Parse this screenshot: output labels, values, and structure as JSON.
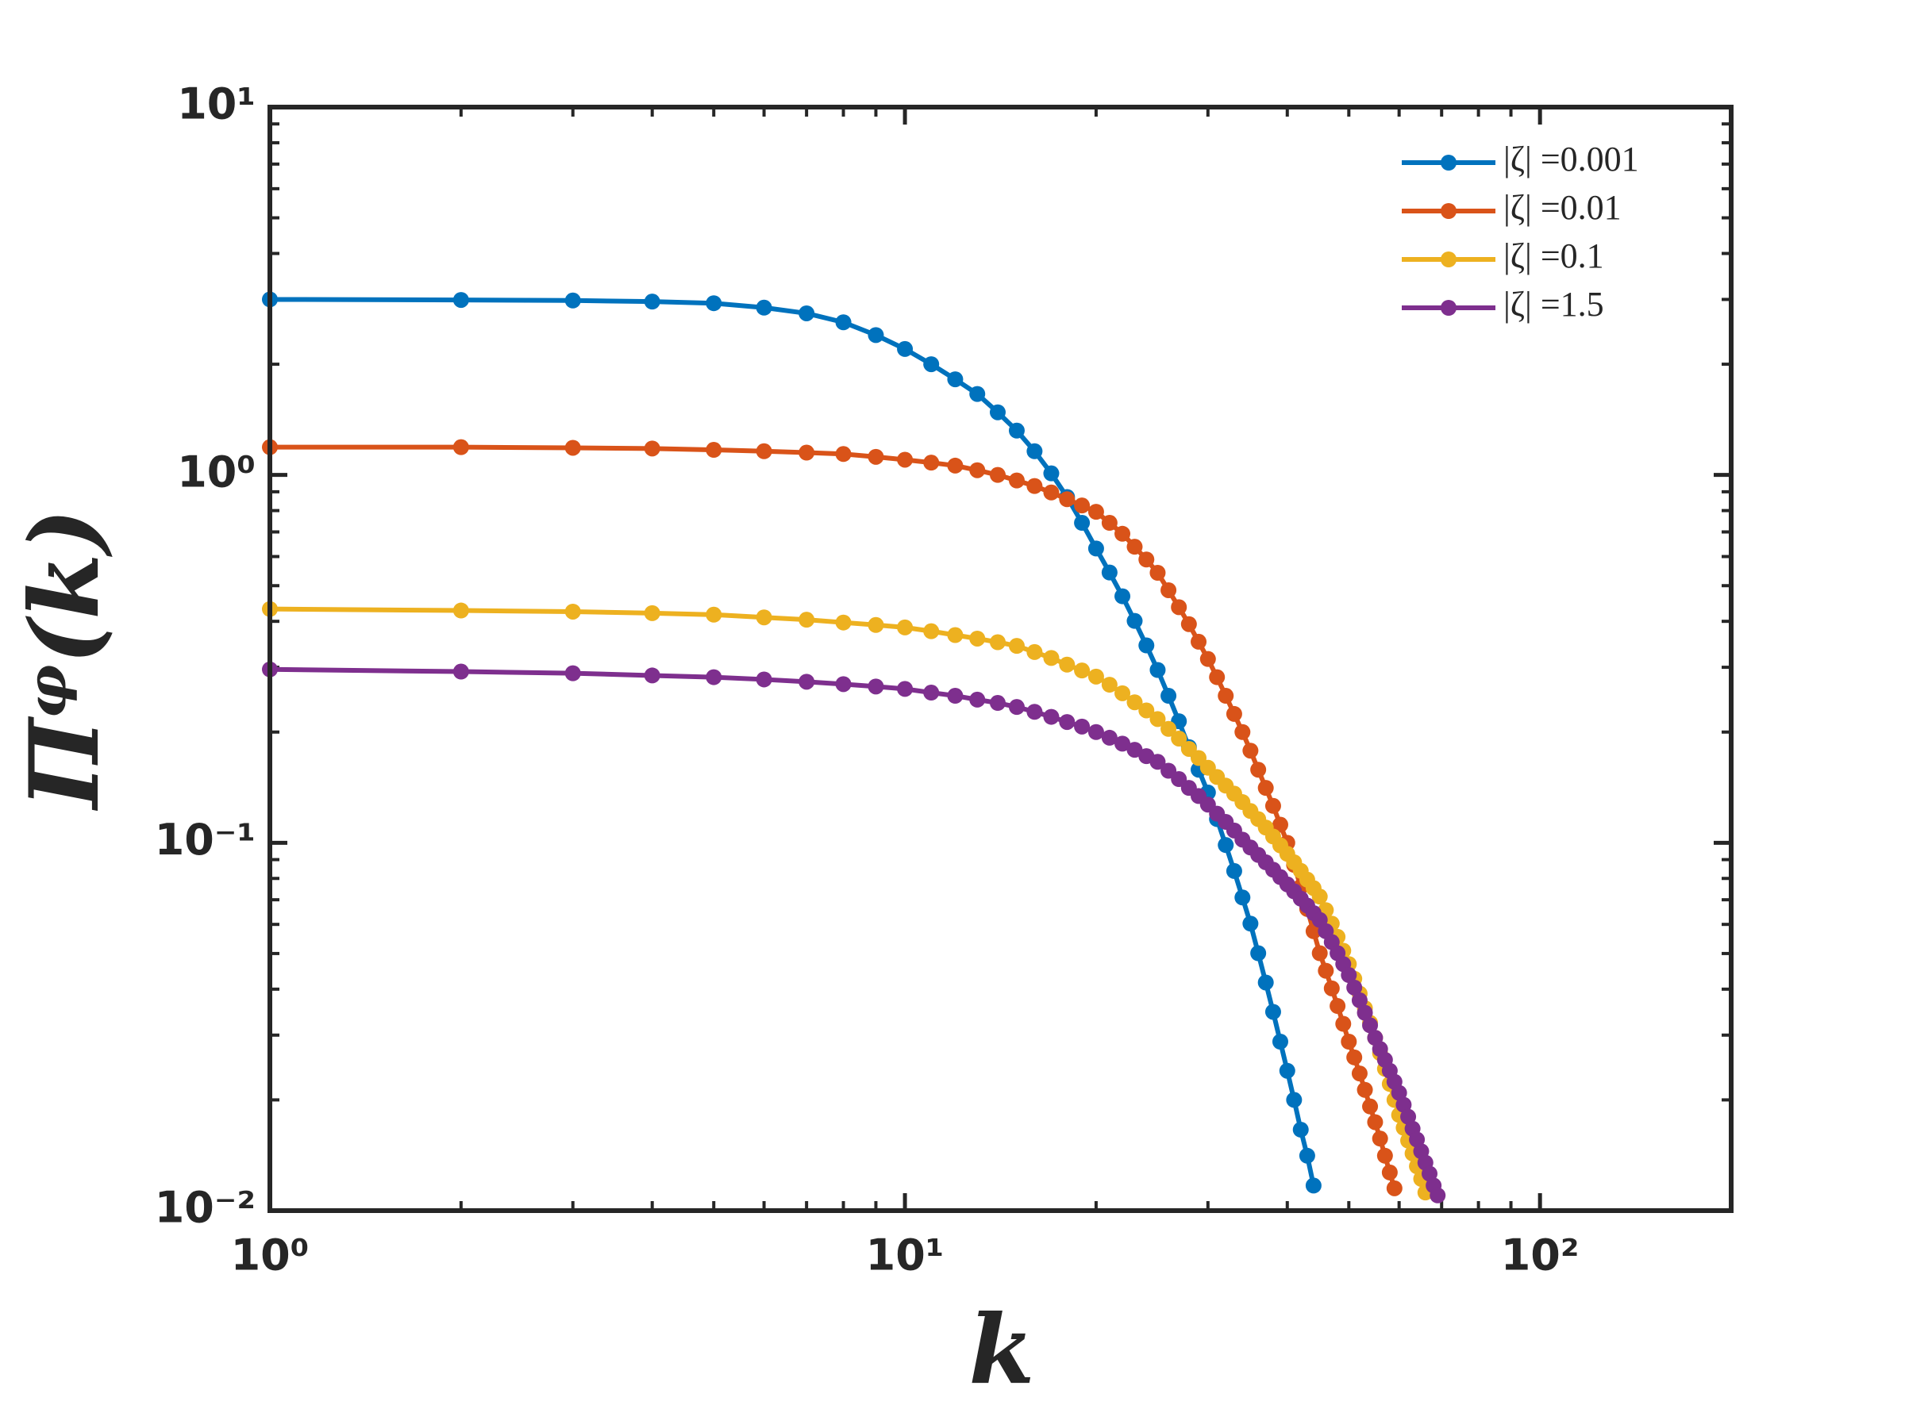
{
  "chart_data": {
    "type": "line",
    "xlabel": "k",
    "ylabel": "Πᵠ(k)",
    "xscale": "log",
    "yscale": "log",
    "xlim": [
      1,
      200
    ],
    "ylim": [
      0.01,
      10
    ],
    "xticks": [
      {
        "value": 1,
        "label": "10⁰"
      },
      {
        "value": 10,
        "label": "10¹"
      },
      {
        "value": 100,
        "label": "10²"
      }
    ],
    "yticks": [
      {
        "value": 0.01,
        "label": "10⁻²"
      },
      {
        "value": 0.1,
        "label": "10⁻¹"
      },
      {
        "value": 1,
        "label": "10⁰"
      },
      {
        "value": 10,
        "label": "10¹"
      }
    ],
    "minor_ticks": true,
    "grid": false,
    "legend": "upper right",
    "markers": true,
    "x": [
      1,
      2,
      3,
      4,
      5,
      6,
      7,
      8,
      9,
      10,
      11,
      12,
      13,
      14,
      15,
      16,
      17,
      18,
      19,
      20,
      21,
      22,
      23,
      24,
      25,
      26,
      27,
      28,
      29,
      30,
      31,
      32,
      33,
      34,
      35,
      36,
      37,
      38,
      39,
      40,
      41,
      42,
      43,
      44,
      45,
      46,
      47,
      48,
      49,
      50,
      51,
      52,
      53,
      54,
      55,
      56,
      57,
      58,
      59,
      60,
      61,
      62,
      63,
      64,
      65,
      66,
      67,
      68,
      69
    ],
    "series": [
      {
        "name": "|ζ| =0.001",
        "color": "#0072bd",
        "values": [
          3.0,
          2.99,
          2.98,
          2.96,
          2.93,
          2.85,
          2.75,
          2.6,
          2.4,
          2.2,
          2.0,
          1.82,
          1.66,
          1.48,
          1.32,
          1.16,
          1.01,
          0.871,
          0.741,
          0.631,
          0.543,
          0.468,
          0.401,
          0.344,
          0.295,
          0.251,
          0.214,
          0.182,
          0.158,
          0.137,
          0.116,
          0.0986,
          0.0838,
          0.071,
          0.0603,
          0.0501,
          0.0417,
          0.0347,
          0.0288,
          0.024,
          0.02,
          0.0166,
          0.0141,
          0.0117,
          null,
          null,
          null,
          null,
          null,
          null,
          null,
          null,
          null,
          null,
          null,
          null,
          null,
          null,
          null,
          null,
          null,
          null,
          null,
          null,
          null,
          null,
          null,
          null,
          null
        ]
      },
      {
        "name": "|ζ| =0.01",
        "color": "#d95319",
        "values": [
          1.19,
          1.19,
          1.185,
          1.18,
          1.17,
          1.16,
          1.15,
          1.14,
          1.12,
          1.1,
          1.08,
          1.06,
          1.03,
          1.0,
          0.966,
          0.933,
          0.896,
          0.859,
          0.826,
          0.794,
          0.741,
          0.692,
          0.638,
          0.589,
          0.542,
          0.486,
          0.437,
          0.393,
          0.352,
          0.316,
          0.282,
          0.251,
          0.224,
          0.2,
          0.178,
          0.158,
          0.141,
          0.126,
          0.112,
          0.1,
          0.0871,
          0.0759,
          0.0661,
          0.0575,
          0.0501,
          0.0449,
          0.0402,
          0.036,
          0.0322,
          0.0288,
          0.0261,
          0.0236,
          0.0213,
          0.0192,
          0.0174,
          0.0157,
          0.0141,
          0.0127,
          0.0115,
          null,
          null,
          null,
          null,
          null,
          null,
          null,
          null,
          null,
          null
        ]
      },
      {
        "name": "|ζ| =0.1",
        "color": "#edb120",
        "values": [
          0.432,
          0.428,
          0.425,
          0.421,
          0.417,
          0.41,
          0.404,
          0.397,
          0.391,
          0.385,
          0.376,
          0.367,
          0.359,
          0.351,
          0.343,
          0.33,
          0.318,
          0.305,
          0.294,
          0.283,
          0.269,
          0.255,
          0.241,
          0.229,
          0.217,
          0.204,
          0.192,
          0.18,
          0.17,
          0.16,
          0.151,
          0.143,
          0.136,
          0.129,
          0.122,
          0.116,
          0.11,
          0.104,
          0.0984,
          0.0933,
          0.0885,
          0.0839,
          0.0794,
          0.0753,
          0.0714,
          0.0656,
          0.0603,
          0.0555,
          0.0509,
          0.0468,
          0.0427,
          0.0389,
          0.0355,
          0.0324,
          0.0295,
          0.0268,
          0.0243,
          0.0221,
          0.02,
          0.0182,
          0.0168,
          0.0155,
          0.0143,
          0.0132,
          0.0122,
          0.0112,
          null,
          null,
          null
        ]
      },
      {
        "name": "|ζ| =1.5",
        "color": "#7e2f8e",
        "values": [
          0.296,
          0.292,
          0.289,
          0.285,
          0.282,
          0.278,
          0.274,
          0.27,
          0.266,
          0.262,
          0.256,
          0.251,
          0.245,
          0.24,
          0.234,
          0.227,
          0.22,
          0.213,
          0.207,
          0.2,
          0.193,
          0.186,
          0.179,
          0.172,
          0.166,
          0.157,
          0.149,
          0.141,
          0.134,
          0.127,
          0.12,
          0.114,
          0.108,
          0.102,
          0.0971,
          0.0927,
          0.0885,
          0.0845,
          0.0807,
          0.0771,
          0.0738,
          0.0705,
          0.0675,
          0.0644,
          0.0617,
          0.0575,
          0.0537,
          0.0501,
          0.0468,
          0.0437,
          0.0404,
          0.0373,
          0.0345,
          0.0319,
          0.0295,
          0.0275,
          0.0257,
          0.024,
          0.0224,
          0.0209,
          0.0194,
          0.018,
          0.0167,
          0.0156,
          0.0145,
          0.0135,
          0.0126,
          0.0117,
          0.011
        ]
      }
    ]
  }
}
